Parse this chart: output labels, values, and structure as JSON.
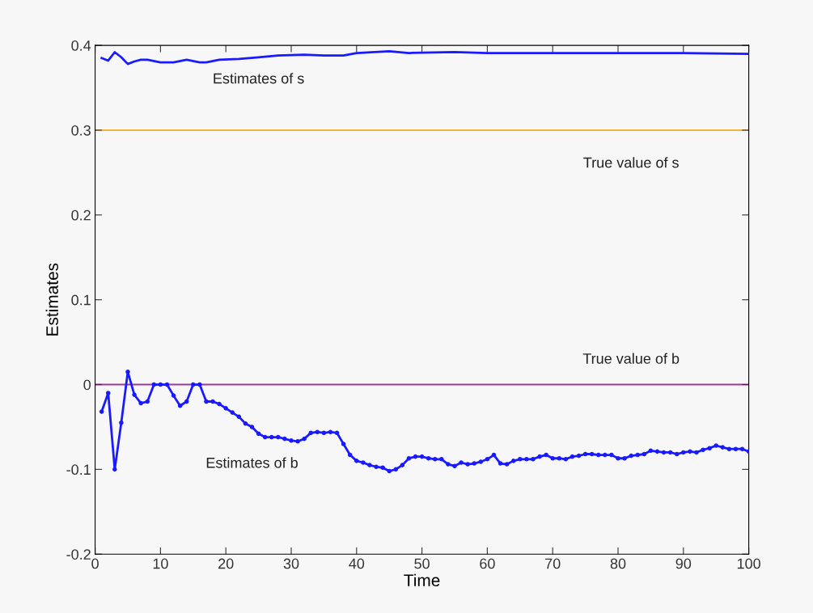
{
  "chart_data": {
    "type": "line",
    "xlabel": "Time",
    "ylabel": "Estimates",
    "xlim": [
      0,
      100
    ],
    "xticks": [
      0,
      10,
      20,
      30,
      40,
      50,
      60,
      70,
      80,
      90,
      100
    ],
    "ylim": [
      -0.2,
      0.4
    ],
    "yticks": [
      -0.2,
      -0.1,
      0,
      0.1,
      0.2,
      0.3,
      0.4
    ],
    "grid": false,
    "legend": false,
    "series": [
      {
        "name": "Estimates of s",
        "color": "#1a1aff",
        "marker": "none",
        "x": [
          1,
          2,
          3,
          4,
          5,
          6,
          7,
          8,
          10,
          12,
          14,
          16,
          17,
          19,
          22,
          25,
          28,
          32,
          35,
          38,
          40,
          45,
          48,
          55,
          60,
          65,
          70,
          80,
          90,
          100
        ],
        "values": [
          0.385,
          0.382,
          0.392,
          0.386,
          0.378,
          0.381,
          0.383,
          0.383,
          0.38,
          0.38,
          0.383,
          0.38,
          0.38,
          0.383,
          0.384,
          0.386,
          0.388,
          0.389,
          0.388,
          0.388,
          0.391,
          0.393,
          0.391,
          0.392,
          0.391,
          0.391,
          0.391,
          0.391,
          0.391,
          0.39
        ]
      },
      {
        "name": "Estimates of b",
        "color": "#1a1aff",
        "marker": "circle",
        "x": [
          1,
          2,
          3,
          4,
          5,
          6,
          7,
          8,
          9,
          10,
          11,
          12,
          13,
          14,
          15,
          16,
          17,
          18,
          19,
          20,
          21,
          22,
          23,
          24,
          25,
          26,
          27,
          28,
          29,
          30,
          31,
          32,
          33,
          34,
          35,
          36,
          37,
          38,
          39,
          40,
          41,
          42,
          43,
          44,
          45,
          46,
          47,
          48,
          49,
          50,
          51,
          52,
          53,
          54,
          55,
          56,
          57,
          58,
          59,
          60,
          61,
          62,
          63,
          64,
          65,
          66,
          67,
          68,
          69,
          70,
          71,
          72,
          73,
          74,
          75,
          76,
          77,
          78,
          79,
          80,
          81,
          82,
          83,
          84,
          85,
          86,
          87,
          88,
          89,
          90,
          91,
          92,
          93,
          94,
          95,
          96,
          97,
          98,
          99,
          100
        ],
        "values": [
          -0.032,
          -0.01,
          -0.1,
          -0.045,
          0.015,
          -0.012,
          -0.022,
          -0.02,
          0.0,
          0.0,
          0.0,
          -0.013,
          -0.025,
          -0.02,
          0.0,
          0.0,
          -0.02,
          -0.02,
          -0.023,
          -0.028,
          -0.033,
          -0.038,
          -0.046,
          -0.05,
          -0.058,
          -0.062,
          -0.062,
          -0.062,
          -0.064,
          -0.066,
          -0.067,
          -0.064,
          -0.057,
          -0.056,
          -0.057,
          -0.056,
          -0.057,
          -0.07,
          -0.083,
          -0.09,
          -0.092,
          -0.095,
          -0.097,
          -0.098,
          -0.102,
          -0.1,
          -0.095,
          -0.087,
          -0.085,
          -0.085,
          -0.087,
          -0.088,
          -0.088,
          -0.094,
          -0.096,
          -0.092,
          -0.094,
          -0.093,
          -0.091,
          -0.088,
          -0.083,
          -0.093,
          -0.094,
          -0.09,
          -0.088,
          -0.088,
          -0.088,
          -0.085,
          -0.083,
          -0.087,
          -0.087,
          -0.088,
          -0.085,
          -0.084,
          -0.082,
          -0.082,
          -0.083,
          -0.083,
          -0.083,
          -0.087,
          -0.087,
          -0.084,
          -0.083,
          -0.082,
          -0.078,
          -0.079,
          -0.08,
          -0.08,
          -0.082,
          -0.08,
          -0.079,
          -0.08,
          -0.077,
          -0.075,
          -0.072,
          -0.074,
          -0.076,
          -0.076,
          -0.076,
          -0.079
        ]
      }
    ],
    "ref_lines": [
      {
        "axis": "y",
        "value": 0.3,
        "color": "#f0b43c",
        "label": "True value of s"
      },
      {
        "axis": "y",
        "value": 0,
        "color": "#9b3a9b",
        "label": "True value of b"
      }
    ]
  }
}
